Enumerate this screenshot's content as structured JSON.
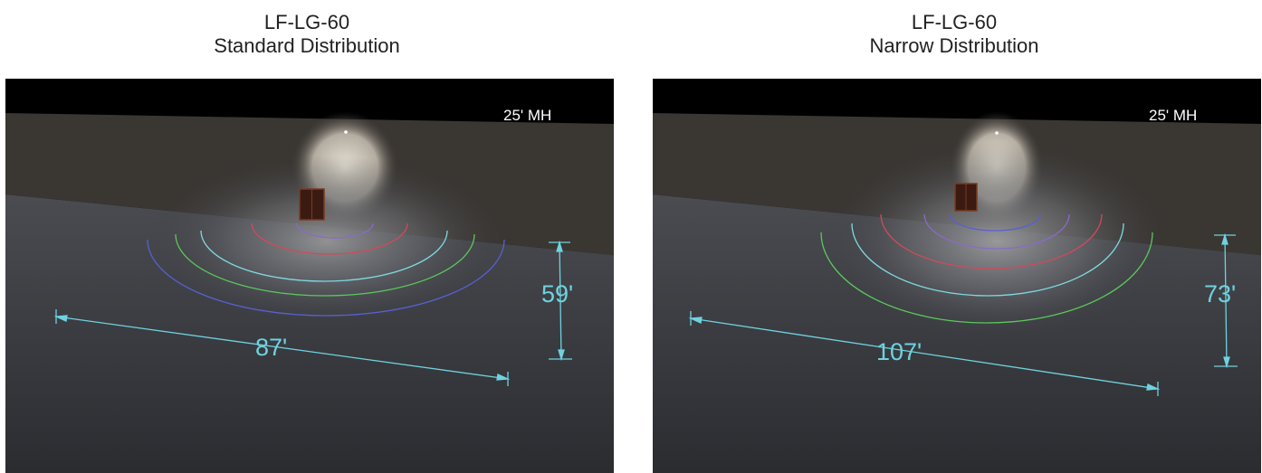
{
  "panels": [
    {
      "product": "LF-LG-60",
      "distribution": "Standard Distribution",
      "mounting_height": "25' MH",
      "width_label": "87'",
      "depth_label": "59'"
    },
    {
      "product": "LF-LG-60",
      "distribution": "Narrow Distribution",
      "mounting_height": "25' MH",
      "width_label": "107'",
      "depth_label": "73'"
    }
  ],
  "colors": {
    "sky": "#000000",
    "wall": "#3a3632",
    "ground": "#3b3d41",
    "dimension": "#6fd2e0",
    "isoline_outer": "#5a5fd0",
    "isoline_green": "#5cc75c",
    "isoline_cyan": "#7fd8e0",
    "isoline_red": "#d04a5a",
    "isoline_inner": "#8a6ac8"
  }
}
